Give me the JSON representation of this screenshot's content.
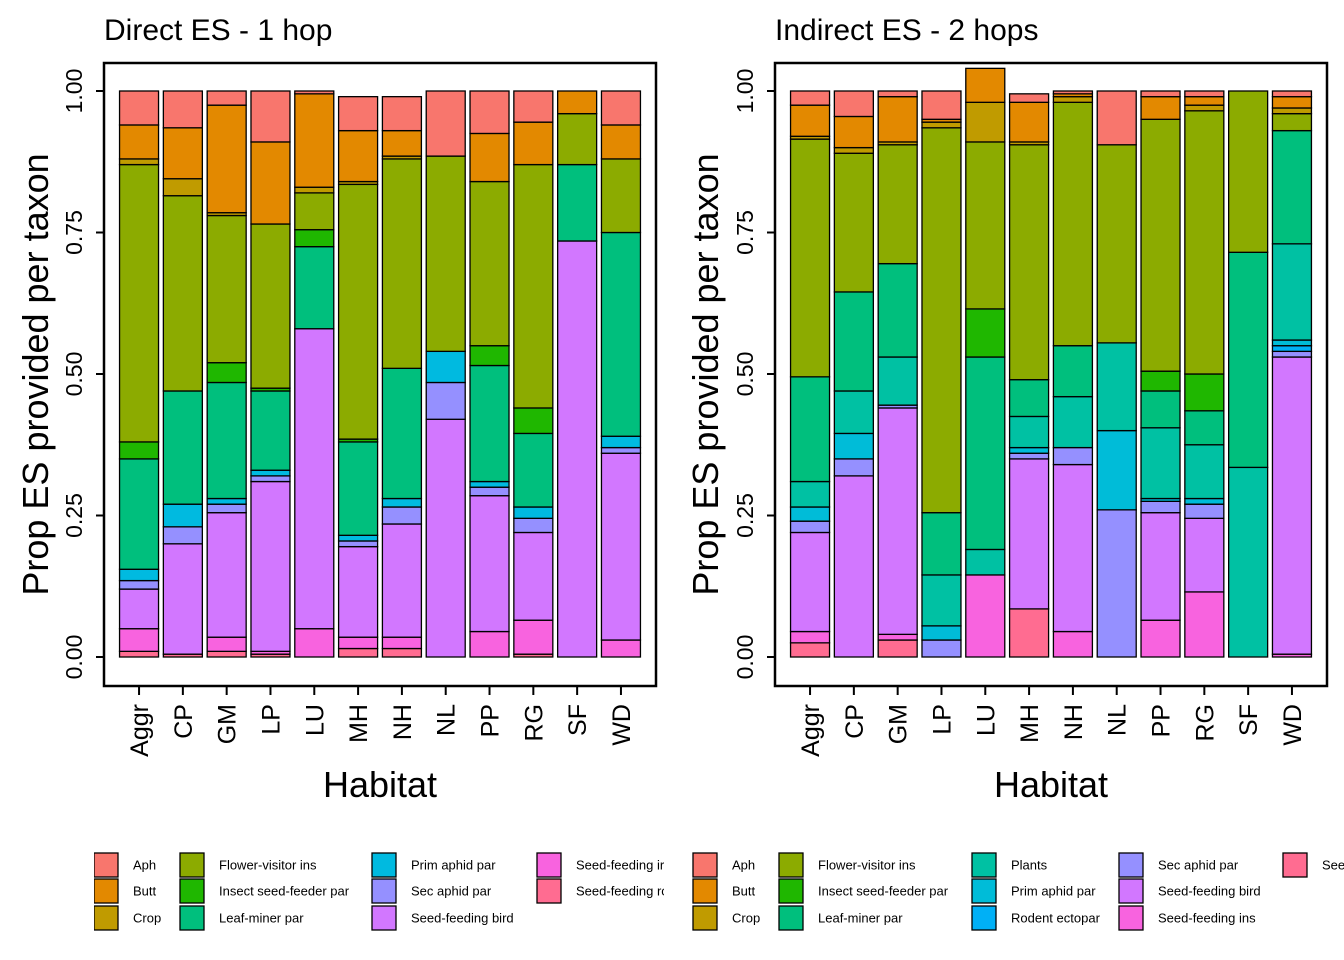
{
  "chart_data": [
    {
      "type": "bar",
      "stacked": true,
      "title": "Direct ES - 1 hop",
      "xlabel": "Habitat",
      "ylabel": "Prop ES provided per taxon",
      "ylim": [
        0,
        1
      ],
      "yticks": [
        "0.00",
        "0.25",
        "0.50",
        "0.75",
        "1.00"
      ],
      "categories": [
        "Aggr",
        "CP",
        "GM",
        "LP",
        "LU",
        "MH",
        "NH",
        "NL",
        "PP",
        "RG",
        "SF",
        "WD"
      ],
      "legend_position": "bottom",
      "series": [
        {
          "name": "Seed-feeding rodent",
          "color": "#FF6C91",
          "values": [
            0.01,
            0.005,
            0.01,
            0.005,
            0,
            0.015,
            0.015,
            0,
            0,
            0.005,
            0,
            0
          ]
        },
        {
          "name": "Seed-feeding ins",
          "color": "#F863DF",
          "values": [
            0.04,
            0,
            0.025,
            0.005,
            0.05,
            0.02,
            0.02,
            0,
            0.045,
            0.06,
            0,
            0.03
          ]
        },
        {
          "name": "Seed-feeding bird",
          "color": "#D277FF",
          "values": [
            0.07,
            0.195,
            0.22,
            0.3,
            0.53,
            0.16,
            0.2,
            0.42,
            0.24,
            0.155,
            0.735,
            0.33
          ]
        },
        {
          "name": "Sec aphid par",
          "color": "#9590FF",
          "values": [
            0.015,
            0.03,
            0.015,
            0.01,
            0,
            0.01,
            0.03,
            0.065,
            0.015,
            0.025,
            0,
            0.01
          ]
        },
        {
          "name": "Prim aphid par",
          "color": "#00BAE0",
          "values": [
            0.02,
            0.04,
            0.01,
            0.01,
            0,
            0.01,
            0.015,
            0.055,
            0.01,
            0.02,
            0,
            0.02
          ]
        },
        {
          "name": "Leaf-miner par",
          "color": "#00BF7D",
          "values": [
            0.195,
            0.2,
            0.205,
            0.14,
            0.145,
            0.165,
            0.23,
            0,
            0.205,
            0.13,
            0.135,
            0.36
          ]
        },
        {
          "name": "Insect seed-feeder par",
          "color": "#1FB700",
          "values": [
            0.03,
            0,
            0.035,
            0.005,
            0.03,
            0.005,
            0,
            0,
            0.035,
            0.045,
            0,
            0
          ]
        },
        {
          "name": "Flower-visitor ins",
          "color": "#8CAB00",
          "values": [
            0.49,
            0.345,
            0.26,
            0.29,
            0.065,
            0.45,
            0.37,
            0.345,
            0.29,
            0.43,
            0.09,
            0.13
          ]
        },
        {
          "name": "Crop",
          "color": "#C09B00",
          "values": [
            0.01,
            0.03,
            0.005,
            0,
            0.01,
            0.005,
            0.005,
            0,
            0,
            0,
            0,
            0
          ]
        },
        {
          "name": "Butt",
          "color": "#E38900",
          "values": [
            0.06,
            0.09,
            0.19,
            0.145,
            0.165,
            0.09,
            0.045,
            0,
            0.085,
            0.075,
            0.04,
            0.06
          ]
        },
        {
          "name": "Aph",
          "color": "#F8766D",
          "values": [
            0.06,
            0.065,
            0.025,
            0.09,
            0.005,
            0.06,
            0.06,
            0.115,
            0.075,
            0.055,
            0,
            0.06
          ]
        }
      ],
      "legend_entries": [
        {
          "name": "Aph",
          "color": "#F8766D"
        },
        {
          "name": "Butt",
          "color": "#E38900"
        },
        {
          "name": "Crop",
          "color": "#C09B00"
        },
        {
          "name": "Flower-visitor ins",
          "color": "#8CAB00"
        },
        {
          "name": "Insect seed-feeder par",
          "color": "#1FB700"
        },
        {
          "name": "Leaf-miner par",
          "color": "#00BF7D"
        },
        {
          "name": "Prim aphid par",
          "color": "#00BAE0"
        },
        {
          "name": "Sec aphid par",
          "color": "#9590FF"
        },
        {
          "name": "Seed-feeding bird",
          "color": "#D277FF"
        },
        {
          "name": "Seed-feeding ir",
          "color": "#F863DF"
        },
        {
          "name": "Seed-feeding rc",
          "color": "#FF6C91"
        }
      ]
    },
    {
      "type": "bar",
      "stacked": true,
      "title": "Indirect ES - 2 hops",
      "xlabel": "Habitat",
      "ylabel": "Prop ES provided per taxon",
      "ylim": [
        0,
        1
      ],
      "yticks": [
        "0.00",
        "0.25",
        "0.50",
        "0.75",
        "1.00"
      ],
      "categories": [
        "Aggr",
        "CP",
        "GM",
        "LP",
        "LU",
        "MH",
        "NH",
        "NL",
        "PP",
        "RG",
        "SF",
        "WD"
      ],
      "legend_position": "bottom",
      "series": [
        {
          "name": "Seed-feeding rodent",
          "color": "#FF6C91",
          "values": [
            0.025,
            0,
            0.03,
            0,
            0,
            0.085,
            0,
            0,
            0,
            0,
            0,
            0
          ]
        },
        {
          "name": "Seed-feeding ins",
          "color": "#F863DF",
          "values": [
            0.02,
            0,
            0.01,
            0,
            0.145,
            0,
            0.045,
            0,
            0.065,
            0.115,
            0,
            0.005
          ]
        },
        {
          "name": "Seed-feeding bird",
          "color": "#D277FF",
          "values": [
            0.175,
            0.32,
            0.4,
            0,
            0,
            0.265,
            0.295,
            0,
            0.19,
            0.13,
            0,
            0.525
          ]
        },
        {
          "name": "Sec aphid par",
          "color": "#9590FF",
          "values": [
            0.02,
            0.03,
            0.005,
            0.03,
            0,
            0.01,
            0.03,
            0.26,
            0.02,
            0.025,
            0,
            0.01
          ]
        },
        {
          "name": "Rodent ectopar",
          "color": "#00B0F6",
          "values": [
            0,
            0,
            0,
            0,
            0,
            0,
            0,
            0,
            0,
            0,
            0,
            0.01
          ]
        },
        {
          "name": "Prim aphid par",
          "color": "#00BCD8",
          "values": [
            0.025,
            0.045,
            0,
            0.025,
            0,
            0.01,
            0,
            0.14,
            0.005,
            0.01,
            0,
            0.01
          ]
        },
        {
          "name": "Plants",
          "color": "#00C1A3",
          "values": [
            0.045,
            0.075,
            0.085,
            0.09,
            0.045,
            0.055,
            0.09,
            0.155,
            0.125,
            0.095,
            0.335,
            0.17
          ]
        },
        {
          "name": "Leaf-miner par",
          "color": "#00BF7D",
          "values": [
            0.185,
            0.175,
            0.165,
            0.11,
            0.34,
            0.065,
            0.09,
            0,
            0.065,
            0.06,
            0.38,
            0.2
          ]
        },
        {
          "name": "Insect seed-feeder par",
          "color": "#1FB700",
          "values": [
            0,
            0,
            0,
            0,
            0.085,
            0,
            0,
            0,
            0.035,
            0.065,
            0,
            0
          ]
        },
        {
          "name": "Flower-visitor ins",
          "color": "#8CAB00",
          "values": [
            0.42,
            0.245,
            0.21,
            0.68,
            0.295,
            0.415,
            0.43,
            0.35,
            0.445,
            0.465,
            0.285,
            0.03
          ]
        },
        {
          "name": "Crop",
          "color": "#C09B00",
          "values": [
            0.005,
            0.01,
            0.005,
            0.01,
            0.07,
            0.005,
            0.01,
            0,
            0,
            0.01,
            0,
            0.01
          ]
        },
        {
          "name": "Butt",
          "color": "#E38900",
          "values": [
            0.055,
            0.055,
            0.08,
            0.005,
            0.06,
            0.07,
            0.005,
            0,
            0.04,
            0.015,
            0,
            0.02
          ]
        },
        {
          "name": "Aph",
          "color": "#F8766D",
          "values": [
            0.025,
            0.045,
            0.01,
            0.05,
            0,
            0.015,
            0.005,
            0.095,
            0.01,
            0.01,
            0,
            0.01
          ]
        }
      ],
      "legend_entries": [
        {
          "name": "Aph",
          "color": "#F8766D"
        },
        {
          "name": "Butt",
          "color": "#E38900"
        },
        {
          "name": "Crop",
          "color": "#C09B00"
        },
        {
          "name": "Flower-visitor ins",
          "color": "#8CAB00"
        },
        {
          "name": "Insect seed-feeder par",
          "color": "#1FB700"
        },
        {
          "name": "Leaf-miner par",
          "color": "#00BF7D"
        },
        {
          "name": "Plants",
          "color": "#00C1A3"
        },
        {
          "name": "Prim aphid par",
          "color": "#00BCD8"
        },
        {
          "name": "Rodent ectopar",
          "color": "#00B0F6"
        },
        {
          "name": "Sec aphid par",
          "color": "#9590FF"
        },
        {
          "name": "Seed-feeding bird",
          "color": "#D277FF"
        },
        {
          "name": "Seed-feeding ins",
          "color": "#F863DF"
        },
        {
          "name": "See",
          "color": "#FF6C91"
        }
      ]
    }
  ]
}
